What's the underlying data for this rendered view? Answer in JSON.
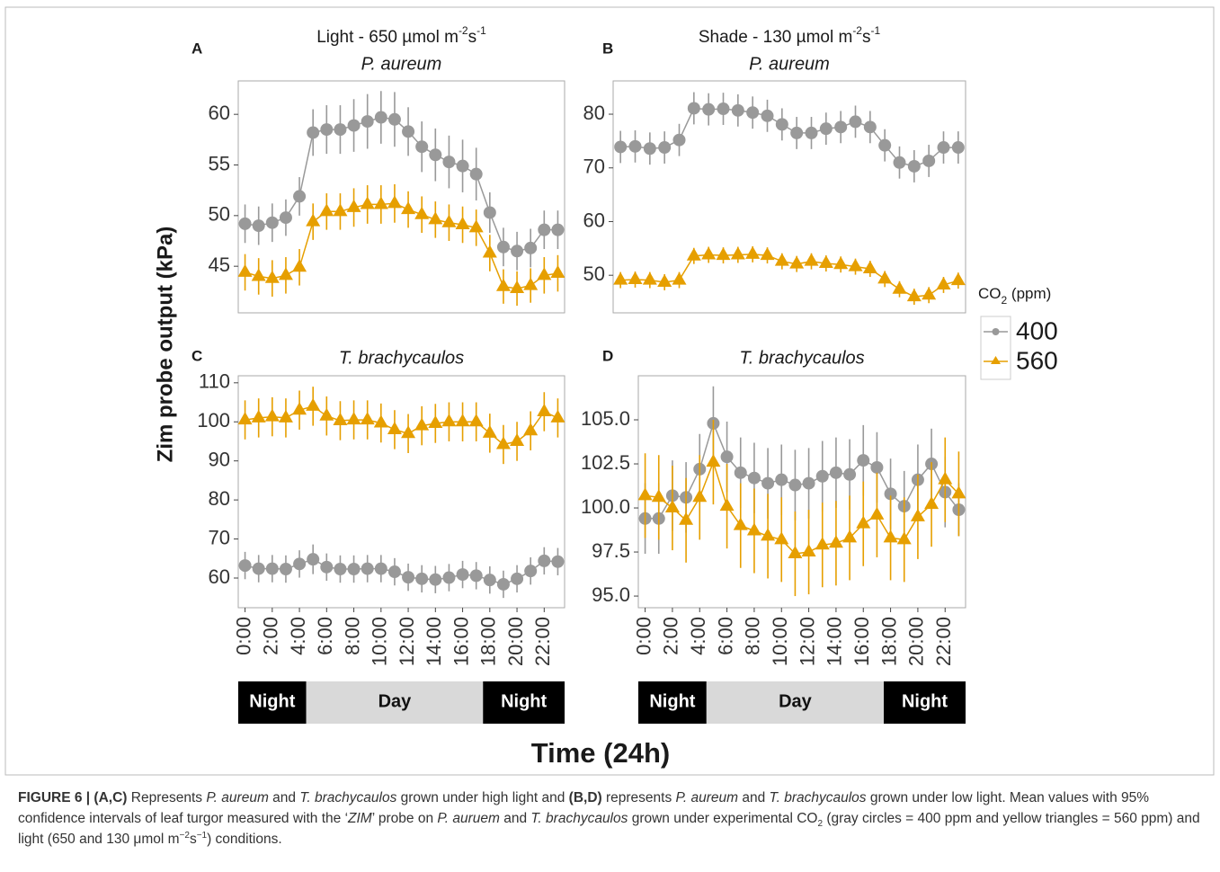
{
  "chart_data": [
    {
      "type": "line",
      "label": "A",
      "title_parts": [
        {
          "text": "Light - 650 µmol m"
        },
        {
          "text": "-2",
          "sup": true
        },
        {
          "text": "s"
        },
        {
          "text": "-1",
          "sup": true
        }
      ],
      "subtitle": "P. aureum",
      "x": [
        0,
        1,
        2,
        3,
        4,
        5,
        6,
        7,
        8,
        9,
        10,
        11,
        12,
        13,
        14,
        15,
        16,
        17,
        18,
        19,
        20,
        21,
        22,
        23
      ],
      "xlim": [
        -0.5,
        23.5
      ],
      "ylim": [
        40.4,
        63.3
      ],
      "yticks": [
        45,
        50,
        55,
        60
      ],
      "series": [
        {
          "name": "400",
          "color": "#999999",
          "marker": "circle",
          "values": [
            49.2,
            49.0,
            49.3,
            49.8,
            51.9,
            58.2,
            58.5,
            58.5,
            58.9,
            59.3,
            59.7,
            59.5,
            58.3,
            56.8,
            56.0,
            55.3,
            54.9,
            54.1,
            50.3,
            46.9,
            46.5,
            46.8,
            48.6,
            48.6
          ],
          "errors": [
            1.9,
            1.9,
            1.9,
            1.8,
            1.9,
            2.3,
            2.4,
            2.4,
            2.6,
            2.7,
            2.6,
            2.7,
            2.4,
            2.5,
            2.6,
            2.6,
            2.6,
            2.6,
            2.0,
            1.9,
            1.9,
            1.9,
            1.9,
            1.9
          ]
        },
        {
          "name": "560",
          "color": "#E69F00",
          "marker": "triangle",
          "values": [
            44.4,
            44.0,
            43.8,
            44.1,
            44.9,
            49.4,
            50.4,
            50.4,
            50.8,
            51.1,
            51.1,
            51.2,
            50.6,
            50.1,
            49.6,
            49.3,
            49.1,
            48.8,
            46.3,
            43.0,
            42.8,
            43.1,
            44.1,
            44.3
          ],
          "errors": [
            1.8,
            1.8,
            1.8,
            1.8,
            1.8,
            1.8,
            1.8,
            1.8,
            1.9,
            1.9,
            1.9,
            1.9,
            1.8,
            1.8,
            1.8,
            1.8,
            1.8,
            1.8,
            1.8,
            1.7,
            1.7,
            1.7,
            1.8,
            1.8
          ]
        }
      ]
    },
    {
      "type": "line",
      "label": "B",
      "title_parts": [
        {
          "text": "Shade - 130 µmol m"
        },
        {
          "text": "-2",
          "sup": true
        },
        {
          "text": "s"
        },
        {
          "text": "-1",
          "sup": true
        }
      ],
      "subtitle": "P. aureum",
      "x": [
        0,
        1,
        2,
        3,
        4,
        5,
        6,
        7,
        8,
        9,
        10,
        11,
        12,
        13,
        14,
        15,
        16,
        17,
        18,
        19,
        20,
        21,
        22,
        23
      ],
      "xlim": [
        -0.5,
        23.5
      ],
      "ylim": [
        43.0,
        86.2
      ],
      "yticks": [
        50,
        60,
        70,
        80
      ],
      "series": [
        {
          "name": "400",
          "color": "#999999",
          "marker": "circle",
          "values": [
            73.9,
            74.0,
            73.6,
            73.8,
            75.2,
            81.1,
            80.9,
            81.0,
            80.7,
            80.3,
            79.7,
            78.1,
            76.5,
            76.5,
            77.3,
            77.6,
            78.6,
            77.6,
            74.2,
            71.0,
            70.3,
            71.3,
            73.8,
            73.8
          ],
          "errors": [
            3.0,
            3.0,
            3.0,
            3.0,
            3.0,
            3.0,
            3.0,
            3.0,
            3.0,
            3.0,
            3.0,
            3.0,
            3.0,
            3.0,
            3.0,
            3.0,
            3.0,
            3.0,
            3.0,
            3.0,
            3.0,
            3.0,
            3.0,
            3.0
          ]
        },
        {
          "name": "560",
          "color": "#E69F00",
          "marker": "triangle",
          "values": [
            49.1,
            49.2,
            49.1,
            48.7,
            49.1,
            53.6,
            53.8,
            53.7,
            53.8,
            53.9,
            53.7,
            52.6,
            52.1,
            52.6,
            52.2,
            52.0,
            51.6,
            51.2,
            49.3,
            47.4,
            46.0,
            46.3,
            48.2,
            49.0
          ],
          "errors": [
            1.5,
            1.5,
            1.5,
            1.5,
            1.5,
            1.5,
            1.5,
            1.5,
            1.5,
            1.5,
            1.5,
            1.5,
            1.5,
            1.5,
            1.5,
            1.5,
            1.5,
            1.5,
            1.5,
            1.5,
            1.5,
            1.5,
            1.5,
            1.5
          ]
        }
      ]
    },
    {
      "type": "line",
      "label": "C",
      "subtitle": "T. brachycaulos",
      "x": [
        0,
        1,
        2,
        3,
        4,
        5,
        6,
        7,
        8,
        9,
        10,
        11,
        12,
        13,
        14,
        15,
        16,
        17,
        18,
        19,
        20,
        21,
        22,
        23
      ],
      "xlim": [
        -0.5,
        23.5
      ],
      "ylim": [
        52.4,
        111.8
      ],
      "yticks": [
        60,
        70,
        80,
        90,
        100,
        110
      ],
      "xticks": [
        {
          "value": 0,
          "label": "0:00"
        },
        {
          "value": 2,
          "label": "2:00"
        },
        {
          "value": 4,
          "label": "4:00"
        },
        {
          "value": 6,
          "label": "6:00"
        },
        {
          "value": 8,
          "label": "8:00"
        },
        {
          "value": 10,
          "label": "10:00"
        },
        {
          "value": 12,
          "label": "12:00"
        },
        {
          "value": 14,
          "label": "14:00"
        },
        {
          "value": 16,
          "label": "16:00"
        },
        {
          "value": 18,
          "label": "18:00"
        },
        {
          "value": 20,
          "label": "20:00"
        },
        {
          "value": 22,
          "label": "22:00"
        }
      ],
      "periods": [
        {
          "label": "Night",
          "start": 0,
          "end": 5
        },
        {
          "label": "Day",
          "start": 5,
          "end": 18
        },
        {
          "label": "Night",
          "start": 18,
          "end": 24
        }
      ],
      "series": [
        {
          "name": "400",
          "color": "#999999",
          "marker": "circle",
          "values": [
            63.2,
            62.4,
            62.4,
            62.3,
            63.6,
            64.8,
            62.8,
            62.3,
            62.3,
            62.4,
            62.4,
            61.6,
            60.2,
            59.8,
            59.6,
            60.1,
            60.9,
            60.6,
            59.5,
            58.4,
            59.8,
            61.8,
            64.4,
            64.2
          ],
          "errors": [
            3.5,
            3.5,
            3.5,
            3.5,
            3.5,
            3.8,
            3.5,
            3.5,
            3.5,
            3.5,
            3.5,
            3.5,
            3.5,
            3.5,
            3.5,
            3.5,
            3.5,
            3.5,
            3.5,
            3.5,
            3.5,
            3.5,
            3.5,
            3.5
          ]
        },
        {
          "name": "560",
          "color": "#E69F00",
          "marker": "triangle",
          "values": [
            100.5,
            101.0,
            101.3,
            101.0,
            103.0,
            104.0,
            101.5,
            100.3,
            100.5,
            100.5,
            99.7,
            98.0,
            97.0,
            99.0,
            99.6,
            100.0,
            100.0,
            100.0,
            97.1,
            94.2,
            95.0,
            97.7,
            102.6,
            101.0
          ],
          "errors": [
            5.0,
            5.0,
            5.0,
            5.0,
            5.0,
            5.0,
            5.0,
            5.0,
            5.0,
            5.0,
            5.0,
            5.0,
            5.0,
            5.0,
            5.0,
            5.0,
            5.0,
            5.0,
            5.0,
            5.0,
            5.0,
            5.0,
            5.0,
            5.0
          ]
        }
      ]
    },
    {
      "type": "line",
      "label": "D",
      "subtitle": "T. brachycaulos",
      "x": [
        0,
        1,
        2,
        3,
        4,
        5,
        6,
        7,
        8,
        9,
        10,
        11,
        12,
        13,
        14,
        15,
        16,
        17,
        18,
        19,
        20,
        21,
        22,
        23
      ],
      "xlim": [
        -0.5,
        23.5
      ],
      "ylim": [
        94.34,
        107.5
      ],
      "yticks": [
        {
          "value": 95,
          "label": "95.0"
        },
        {
          "value": 97.5,
          "label": "97.5"
        },
        {
          "value": 100,
          "label": "100.0"
        },
        {
          "value": 102.5,
          "label": "102.5"
        },
        {
          "value": 105,
          "label": "105.0"
        }
      ],
      "xticks": [
        {
          "value": 0,
          "label": "0:00"
        },
        {
          "value": 2,
          "label": "2:00"
        },
        {
          "value": 4,
          "label": "4:00"
        },
        {
          "value": 6,
          "label": "6:00"
        },
        {
          "value": 8,
          "label": "8:00"
        },
        {
          "value": 10,
          "label": "10:00"
        },
        {
          "value": 12,
          "label": "12:00"
        },
        {
          "value": 14,
          "label": "14:00"
        },
        {
          "value": 16,
          "label": "16:00"
        },
        {
          "value": 18,
          "label": "18:00"
        },
        {
          "value": 20,
          "label": "20:00"
        },
        {
          "value": 22,
          "label": "22:00"
        }
      ],
      "periods": [
        {
          "label": "Night",
          "start": 0,
          "end": 5
        },
        {
          "label": "Day",
          "start": 5,
          "end": 18
        },
        {
          "label": "Night",
          "start": 18,
          "end": 24
        }
      ],
      "series": [
        {
          "name": "400",
          "color": "#999999",
          "marker": "circle",
          "values": [
            99.4,
            99.4,
            100.7,
            100.6,
            102.2,
            104.8,
            102.9,
            102.0,
            101.7,
            101.4,
            101.6,
            101.3,
            101.4,
            101.8,
            102.0,
            101.9,
            102.7,
            102.3,
            100.8,
            100.1,
            101.6,
            102.5,
            100.9,
            99.9
          ],
          "errors": [
            2.0,
            2.0,
            2.0,
            2.0,
            2.0,
            2.1,
            2.0,
            2.0,
            2.0,
            2.0,
            2.0,
            2.0,
            2.0,
            2.0,
            2.0,
            2.0,
            2.0,
            2.0,
            2.0,
            2.0,
            2.0,
            2.0,
            2.0,
            1.5
          ]
        },
        {
          "name": "560",
          "color": "#E69F00",
          "marker": "triangle",
          "values": [
            100.7,
            100.6,
            100.0,
            99.3,
            100.6,
            102.6,
            100.1,
            99.0,
            98.7,
            98.4,
            98.2,
            97.4,
            97.5,
            97.9,
            98.0,
            98.3,
            99.1,
            99.6,
            98.3,
            98.2,
            99.5,
            100.2,
            101.6,
            100.8
          ],
          "errors": [
            2.4,
            2.4,
            2.4,
            2.4,
            2.4,
            2.4,
            2.4,
            2.4,
            2.4,
            2.4,
            2.4,
            2.4,
            2.4,
            2.4,
            2.4,
            2.4,
            2.4,
            2.4,
            2.4,
            2.4,
            2.4,
            2.4,
            2.4,
            2.4
          ]
        }
      ]
    }
  ],
  "y_label": "Zim probe output (kPa)",
  "x_label": "Time (24h)",
  "legend_title_parts": [
    {
      "text": "CO"
    },
    {
      "text": "2",
      "sub": true
    },
    {
      "text": " (ppm)"
    }
  ],
  "caption": [
    {
      "text": "FIGURE 6 | (A,C)",
      "bold": true
    },
    {
      "text": " Represents "
    },
    {
      "text": "P. aureum",
      "italic": true
    },
    {
      "text": " and "
    },
    {
      "text": "T. brachycaulos",
      "italic": true
    },
    {
      "text": " grown under high light and "
    },
    {
      "text": "(B,D)",
      "bold": true
    },
    {
      "text": " represents "
    },
    {
      "text": "P. aureum",
      "italic": true
    },
    {
      "text": " and "
    },
    {
      "text": "T. brachycaulos",
      "italic": true
    },
    {
      "text": " grown under low light. Mean values with 95% confidence intervals of leaf turgor measured with the ‘"
    },
    {
      "text": "ZIM",
      "italic": true
    },
    {
      "text": "’ probe on "
    },
    {
      "text": "P. auruem",
      "italic": true
    },
    {
      "text": " and "
    },
    {
      "text": "T. brachycaulos",
      "italic": true
    },
    {
      "text": " grown under experimental CO"
    },
    {
      "text": "2",
      "sub": true
    },
    {
      "text": " (gray circles = 400 ppm and yellow triangles = 560 ppm) and light (650 and 130 μmol m"
    },
    {
      "text": "−2",
      "sup": true
    },
    {
      "text": "s"
    },
    {
      "text": "−1",
      "sup": true
    },
    {
      "text": ") conditions."
    }
  ]
}
